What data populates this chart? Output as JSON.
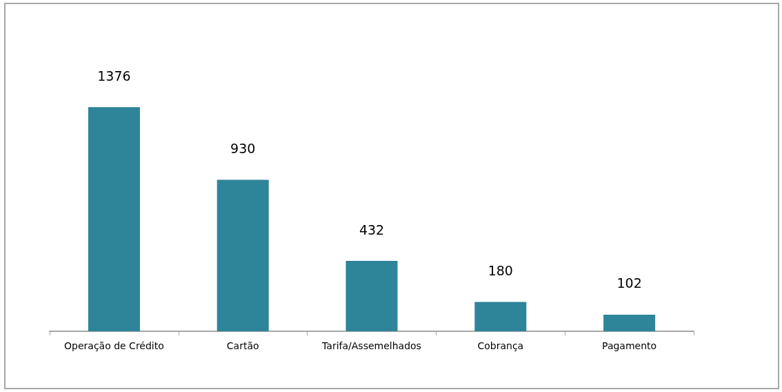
{
  "chart_data": {
    "type": "bar",
    "categories": [
      "Operação de Crédito",
      "Cartão",
      "Tarifa/Assemelhados",
      "Cobrança",
      "Pagamento"
    ],
    "values": [
      1376,
      930,
      432,
      180,
      102
    ],
    "color": "#2e8499",
    "data_labels": true
  }
}
